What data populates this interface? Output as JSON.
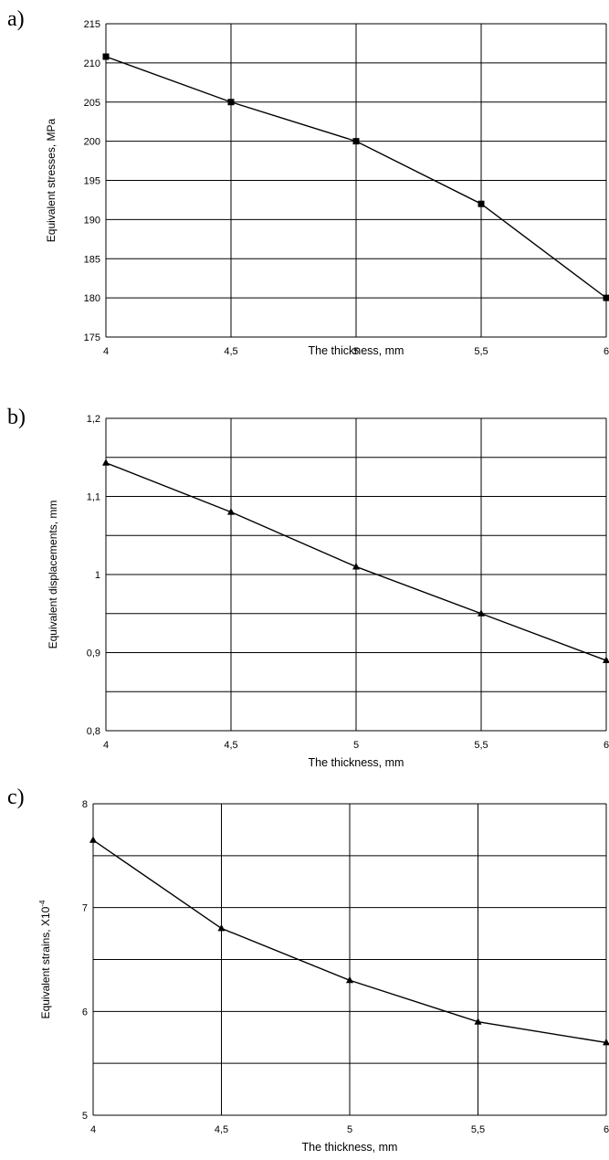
{
  "panels": [
    {
      "label": "a)"
    },
    {
      "label": "b)"
    },
    {
      "label": "c)"
    }
  ],
  "chart_data": [
    {
      "type": "line",
      "title": "",
      "xlabel": "The thickness, mm",
      "ylabel": "Equivalent stresses, MPa",
      "x": [
        4,
        4.5,
        5,
        5.5,
        6
      ],
      "xtick_labels": [
        "4",
        "4,5",
        "5",
        "5,5",
        "6"
      ],
      "xlim": [
        4,
        6
      ],
      "ylim": [
        175,
        215
      ],
      "yticks": [
        175,
        180,
        185,
        190,
        195,
        200,
        205,
        210,
        215
      ],
      "ytick_labels": [
        "175",
        "180",
        "185",
        "190",
        "195",
        "200",
        "205",
        "210",
        "215"
      ],
      "series": [
        {
          "values": [
            210.8,
            205,
            200,
            192,
            180
          ],
          "marker": "square",
          "color": "#000000"
        }
      ],
      "grid": true,
      "legend": "none"
    },
    {
      "type": "line",
      "title": "",
      "xlabel": "The thickness, mm",
      "ylabel": "Equivalent displacements, mm",
      "x": [
        4,
        4.5,
        5,
        5.5,
        6
      ],
      "xtick_labels": [
        "4",
        "4,5",
        "5",
        "5,5",
        "6"
      ],
      "xlim": [
        4,
        6
      ],
      "ylim": [
        0.8,
        1.2
      ],
      "yticks": [
        0.8,
        0.85,
        0.9,
        0.95,
        1.0,
        1.05,
        1.1,
        1.15,
        1.2
      ],
      "ytick_labels": [
        "0,8",
        "",
        "0,9",
        "",
        "1",
        "",
        "1,1",
        "",
        "1,2"
      ],
      "series": [
        {
          "values": [
            1.143,
            1.08,
            1.01,
            0.95,
            0.89
          ],
          "marker": "triangle",
          "color": "#000000"
        }
      ],
      "grid": true,
      "legend": "none"
    },
    {
      "type": "line",
      "title": "",
      "xlabel": "The thickness, mm",
      "ylabel": "Equivalent strains, X10",
      "ylabel_superscript": "-4",
      "x": [
        4,
        4.5,
        5,
        5.5,
        6
      ],
      "xtick_labels": [
        "4",
        "4,5",
        "5",
        "5,5",
        "6"
      ],
      "xlim": [
        4,
        6
      ],
      "ylim": [
        5,
        8
      ],
      "yticks": [
        5,
        5.5,
        6,
        6.5,
        7,
        7.5,
        8
      ],
      "ytick_labels": [
        "5",
        "",
        "6",
        "",
        "7",
        "",
        "8"
      ],
      "series": [
        {
          "values": [
            7.65,
            6.8,
            6.3,
            5.9,
            5.7
          ],
          "marker": "triangle",
          "color": "#000000"
        }
      ],
      "grid": true,
      "legend": "none"
    }
  ]
}
